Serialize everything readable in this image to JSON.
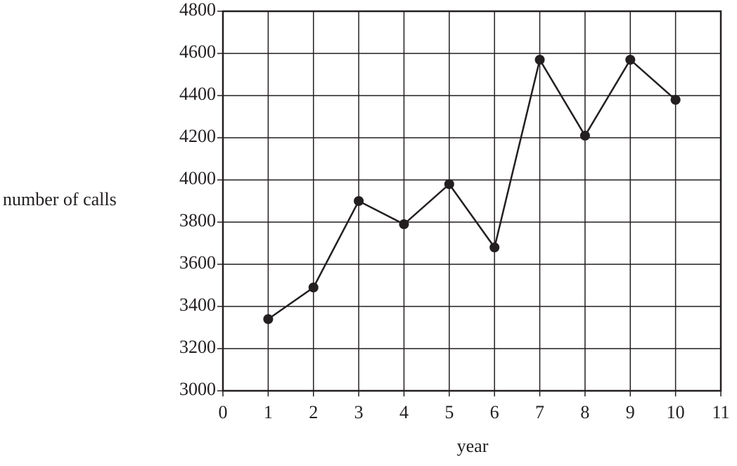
{
  "chart_data": {
    "type": "line",
    "x_label": "year",
    "y_label": "number of calls",
    "x": [
      1,
      2,
      3,
      4,
      5,
      6,
      7,
      8,
      9,
      10
    ],
    "series": [
      {
        "color": "#231f20",
        "values": [
          3340,
          3490,
          3900,
          3790,
          3980,
          3680,
          4570,
          4210,
          4570,
          4380
        ]
      }
    ],
    "xlim": [
      0,
      11
    ],
    "xticks": [
      0,
      1,
      2,
      3,
      4,
      5,
      6,
      7,
      8,
      9,
      10,
      11
    ],
    "ylim": [
      3000,
      4800
    ],
    "yticks": [
      3000,
      3200,
      3400,
      3600,
      3800,
      4000,
      4200,
      4400,
      4600,
      4800
    ],
    "grid": true
  }
}
